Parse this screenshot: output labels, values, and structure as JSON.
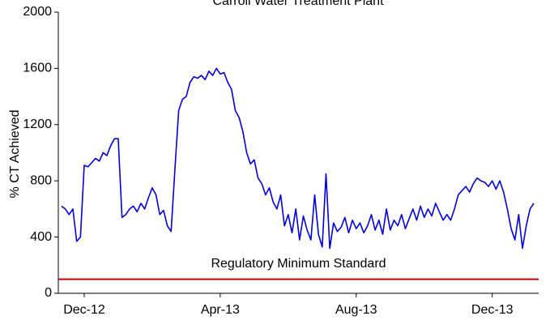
{
  "chart_data": {
    "type": "line",
    "title": "Carroll Water Treatment Plant",
    "y_label": "% CT Achieved",
    "categories": [
      null,
      null,
      null,
      null,
      null,
      null,
      "Dec-12",
      null,
      null,
      null,
      null,
      null,
      null,
      null,
      null,
      null,
      null,
      null,
      null,
      null,
      null,
      null,
      null,
      null,
      null,
      null,
      null,
      null,
      null,
      null,
      null,
      null,
      null,
      null,
      null,
      null,
      null,
      null,
      null,
      null,
      null,
      null,
      "Apr-13",
      null,
      null,
      null,
      null,
      null,
      null,
      null,
      null,
      null,
      null,
      null,
      null,
      null,
      null,
      null,
      null,
      null,
      null,
      null,
      null,
      null,
      null,
      null,
      null,
      null,
      null,
      null,
      null,
      null,
      null,
      null,
      null,
      null,
      null,
      null,
      "Aug-13",
      null,
      null,
      null,
      null,
      null,
      null,
      null,
      null,
      null,
      null,
      null,
      null,
      null,
      null,
      null,
      null,
      null,
      null,
      null,
      null,
      null,
      null,
      null,
      null,
      null,
      null,
      null,
      null,
      null,
      null,
      null,
      null,
      null,
      null,
      null,
      "Dec-13",
      null,
      null,
      null,
      null,
      null,
      null,
      null,
      null,
      null,
      null,
      null
    ],
    "series": [
      {
        "name": "% CT Achieved",
        "color": "#0000dd",
        "values": [
          620,
          600,
          560,
          600,
          370,
          400,
          910,
          900,
          930,
          960,
          940,
          1000,
          980,
          1050,
          1100,
          1100,
          540,
          560,
          600,
          620,
          580,
          640,
          600,
          680,
          750,
          700,
          560,
          590,
          480,
          440,
          880,
          1300,
          1380,
          1400,
          1500,
          1540,
          1530,
          1550,
          1520,
          1580,
          1550,
          1600,
          1560,
          1570,
          1500,
          1450,
          1300,
          1250,
          1150,
          1000,
          920,
          950,
          820,
          780,
          700,
          750,
          650,
          600,
          700,
          480,
          560,
          430,
          600,
          380,
          550,
          450,
          380,
          700,
          420,
          330,
          850,
          320,
          500,
          440,
          470,
          540,
          430,
          520,
          460,
          500,
          430,
          480,
          560,
          450,
          520,
          420,
          600,
          450,
          520,
          480,
          560,
          460,
          530,
          600,
          520,
          620,
          540,
          600,
          550,
          640,
          580,
          520,
          560,
          520,
          600,
          700,
          730,
          760,
          720,
          780,
          820,
          800,
          790,
          760,
          800,
          740,
          800,
          720,
          600,
          460,
          380,
          560,
          320,
          480,
          600,
          640
        ]
      }
    ],
    "threshold": {
      "label": "Regulatory Minimum Standard",
      "value": 100,
      "color": "#c00000"
    },
    "ylim": [
      0,
      2000
    ],
    "yticks": [
      0,
      400,
      800,
      1200,
      1600,
      2000
    ]
  }
}
